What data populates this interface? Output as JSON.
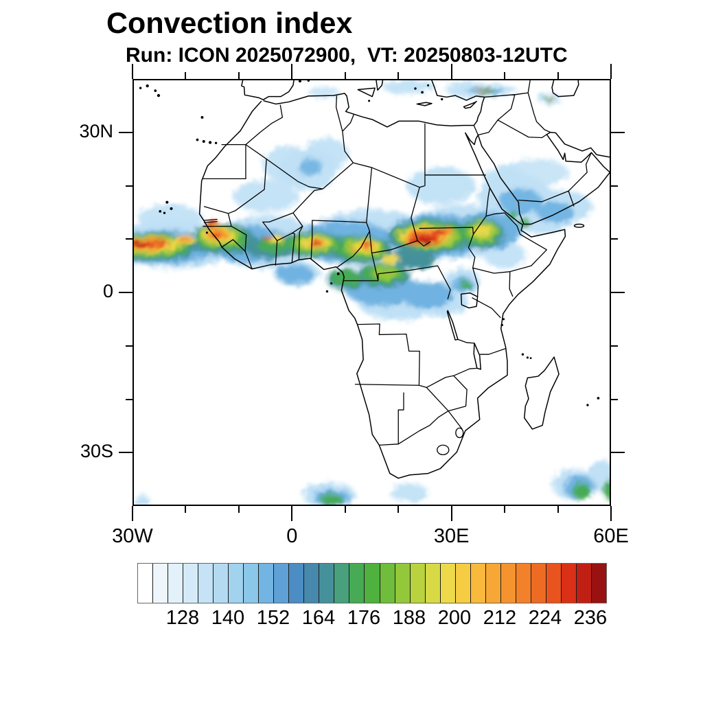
{
  "header": {
    "title": "Convection index",
    "subtitle": "Run: ICON 2025072900,  VT: 20250803-12UTC",
    "text_color": "#000000"
  },
  "map": {
    "extent": {
      "lon_min": -30,
      "lon_max": 60,
      "lat_min": -40,
      "lat_max": 40
    },
    "tick_interval_deg": 10,
    "coastline_color": "#000000",
    "border_color": "#000000",
    "background_color": "#ffffff",
    "y_axis": {
      "labels": [
        {
          "text": "30N",
          "lat": 30
        },
        {
          "text": "0",
          "lat": 0
        },
        {
          "text": "30S",
          "lat": -30
        }
      ]
    },
    "x_axis": {
      "labels": [
        {
          "text": "30W",
          "lon": -30
        },
        {
          "text": "0",
          "lon": 0
        },
        {
          "text": "30E",
          "lon": 30
        },
        {
          "text": "60E",
          "lon": 60
        }
      ]
    }
  },
  "colorbar": {
    "min_value": 116,
    "max_value": 240,
    "value_step_per_cell": 4,
    "outline_color": "#666666",
    "divider_color": "#1b1b1b",
    "labels": [
      {
        "text": "128",
        "value": 128
      },
      {
        "text": "140",
        "value": 140
      },
      {
        "text": "152",
        "value": 152
      },
      {
        "text": "164",
        "value": 164
      },
      {
        "text": "176",
        "value": 176
      },
      {
        "text": "188",
        "value": 188
      },
      {
        "text": "200",
        "value": 200
      },
      {
        "text": "212",
        "value": 212
      },
      {
        "text": "224",
        "value": 224
      },
      {
        "text": "236",
        "value": 236
      }
    ],
    "cell_colors": [
      "#ffffff",
      "#eef6fc",
      "#e2f1fa",
      "#d4eaf8",
      "#c5e2f6",
      "#b4daf2",
      "#a1d2ee",
      "#8bc7e9",
      "#72b5e2",
      "#5fa0d6",
      "#4c8dc4",
      "#4689ad",
      "#45919b",
      "#48a07c",
      "#47aa55",
      "#4fb23f",
      "#6fbd3a",
      "#94c83b",
      "#b8d33e",
      "#d8da45",
      "#edd94a",
      "#f6cc43",
      "#f8b93c",
      "#f7a736",
      "#f5942f",
      "#f2812a",
      "#ee6b24",
      "#e9531e",
      "#da3018",
      "#c02014",
      "#971210"
    ]
  }
}
